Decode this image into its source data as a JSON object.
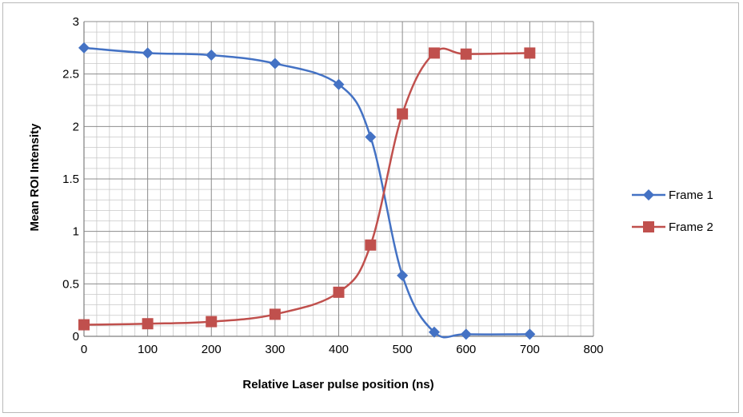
{
  "chart_data": {
    "type": "line",
    "title": "",
    "xlabel": "Relative Laser pulse position (ns)",
    "ylabel": "Mean ROI Intensity",
    "xlim": [
      0,
      800
    ],
    "ylim": [
      0,
      3
    ],
    "x_ticks": [
      "0",
      "100",
      "200",
      "300",
      "400",
      "500",
      "600",
      "700",
      "800"
    ],
    "y_ticks": [
      "0",
      "0.5",
      "1",
      "1.5",
      "2",
      "2.5",
      "3"
    ],
    "grid": true,
    "legend_position": "right",
    "series": [
      {
        "name": "Frame 1",
        "color": "#4472c4",
        "marker": "diamond",
        "x": [
          0,
          100,
          200,
          300,
          400,
          450,
          500,
          550,
          600,
          700
        ],
        "y": [
          2.75,
          2.7,
          2.68,
          2.6,
          2.4,
          1.9,
          0.58,
          0.04,
          0.02,
          0.02
        ]
      },
      {
        "name": "Frame 2",
        "color": "#c0504d",
        "marker": "square",
        "x": [
          0,
          100,
          200,
          300,
          400,
          450,
          500,
          550,
          600,
          700
        ],
        "y": [
          0.11,
          0.12,
          0.14,
          0.21,
          0.42,
          0.87,
          2.12,
          2.7,
          2.69,
          2.7
        ]
      }
    ]
  }
}
